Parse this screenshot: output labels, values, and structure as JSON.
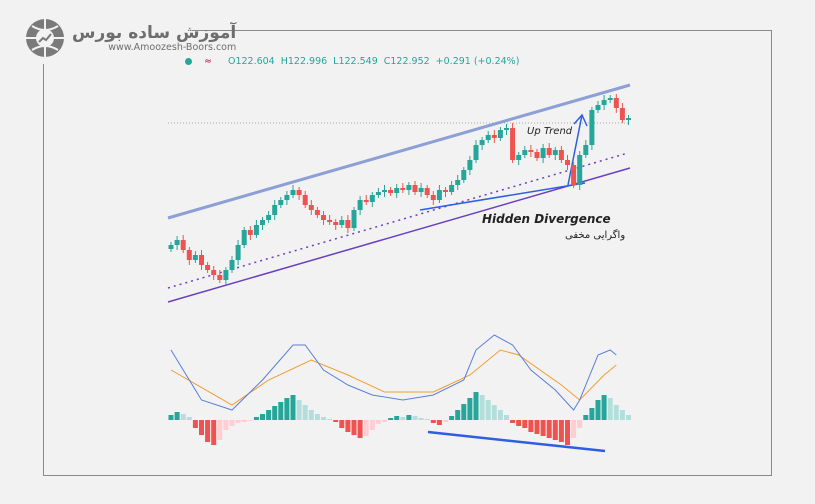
{
  "brand": {
    "name": "آموزش ساده بورس",
    "url": "www.Amoozesh-Boors.com"
  },
  "legend": {
    "open": "O122.604",
    "high": "H122.996",
    "low": "L122.549",
    "close": "C122.952",
    "change": "+0.291 (+0.24%)",
    "status_icon": "dot-icon",
    "wave_icon": "wave-icon"
  },
  "colors": {
    "up": "#26a69a",
    "down": "#ef5350",
    "hist_up_strong": "#26a69a",
    "hist_up_weak": "#b2dfdb",
    "hist_down_strong": "#ef5350",
    "hist_down_weak": "#ffcdd2",
    "macd": "#5b7fd6",
    "signal": "#f39c32",
    "channel": "#8c9fd6",
    "support": "#6a3fc0",
    "annotation": "#2f5fe0"
  },
  "chart_data": {
    "type": "candlestick",
    "title": "",
    "annotations": {
      "up_trend": "Up Trend",
      "hidden_divergence": "Hidden Divergence",
      "hidden_divergence_fa": "واگرایی مخفی"
    },
    "closes": [
      75,
      80,
      70,
      60,
      65,
      55,
      50,
      45,
      40,
      50,
      60,
      75,
      90,
      85,
      95,
      100,
      105,
      115,
      120,
      125,
      130,
      125,
      115,
      110,
      105,
      100,
      98,
      95,
      100,
      92,
      110,
      120,
      118,
      125,
      128,
      130,
      127,
      132,
      130,
      135,
      128,
      132,
      125,
      120,
      130,
      128,
      135,
      140,
      150,
      160,
      175,
      180,
      185,
      182,
      190,
      192,
      160,
      165,
      170,
      168,
      162,
      172,
      165,
      170,
      160,
      155,
      135,
      165,
      175,
      210,
      215,
      220,
      222,
      212,
      200,
      202
    ],
    "histogram": [
      5,
      8,
      6,
      3,
      -8,
      -15,
      -22,
      -25,
      -20,
      -10,
      -6,
      -3,
      -2,
      -1,
      3,
      6,
      10,
      14,
      18,
      22,
      25,
      20,
      15,
      10,
      6,
      3,
      1,
      -2,
      -8,
      -12,
      -15,
      -18,
      -16,
      -10,
      -4,
      -2,
      2,
      4,
      3,
      5,
      4,
      2,
      1,
      -3,
      -5,
      -2,
      4,
      10,
      16,
      22,
      28,
      25,
      20,
      15,
      10,
      5,
      -3,
      -6,
      -8,
      -12,
      -14,
      -16,
      -18,
      -20,
      -22,
      -25,
      -18,
      -8,
      5,
      12,
      20,
      25,
      22,
      15,
      10,
      5
    ],
    "macd_line": [
      [
        0,
        70
      ],
      [
        5,
        20
      ],
      [
        10,
        10
      ],
      [
        15,
        40
      ],
      [
        20,
        75
      ],
      [
        22,
        75
      ],
      [
        25,
        50
      ],
      [
        29,
        35
      ],
      [
        33,
        25
      ],
      [
        38,
        20
      ],
      [
        43,
        25
      ],
      [
        48,
        40
      ],
      [
        50,
        70
      ],
      [
        53,
        85
      ],
      [
        56,
        75
      ],
      [
        59,
        50
      ],
      [
        63,
        30
      ],
      [
        66,
        10
      ],
      [
        67,
        20
      ],
      [
        70,
        65
      ],
      [
        72,
        70
      ],
      [
        73,
        65
      ]
    ],
    "signal_line": [
      [
        0,
        50
      ],
      [
        10,
        15
      ],
      [
        16,
        40
      ],
      [
        23,
        60
      ],
      [
        29,
        45
      ],
      [
        35,
        28
      ],
      [
        43,
        28
      ],
      [
        49,
        45
      ],
      [
        54,
        70
      ],
      [
        57,
        65
      ],
      [
        64,
        35
      ],
      [
        67,
        20
      ],
      [
        71,
        45
      ],
      [
        73,
        55
      ]
    ]
  }
}
